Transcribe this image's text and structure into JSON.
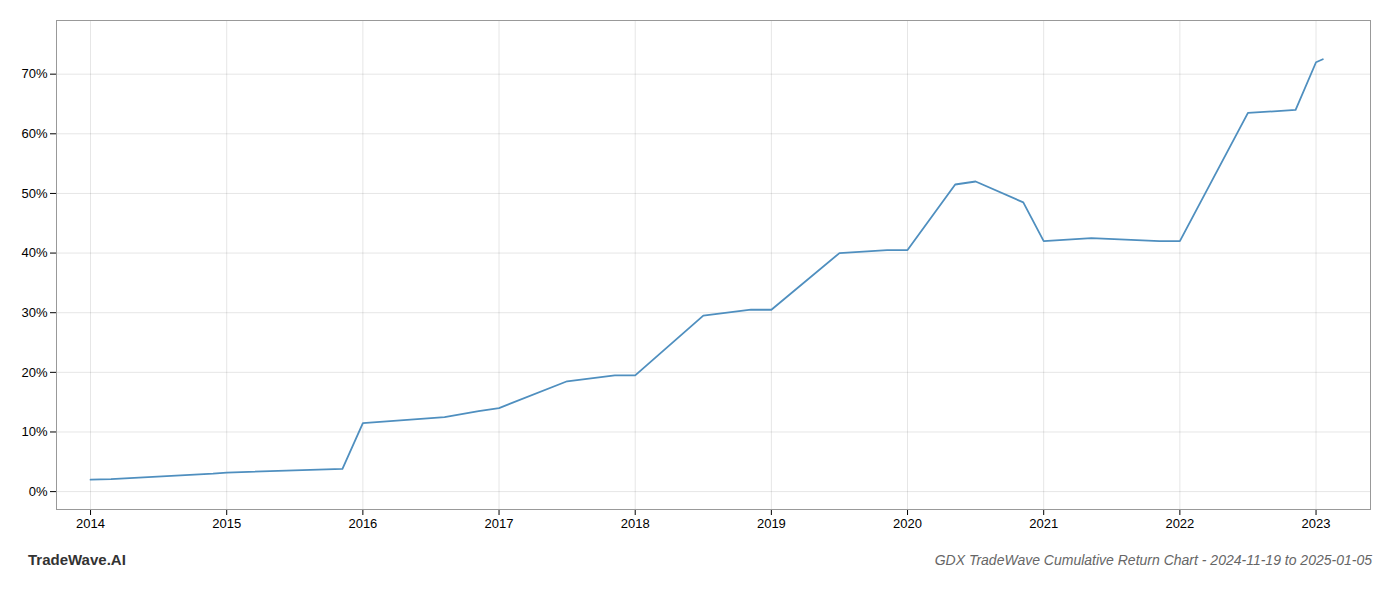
{
  "chart_data": {
    "type": "line",
    "title": "GDX TradeWave Cumulative Return Chart - 2024-11-19 to 2025-01-05",
    "annotations": [
      "TradeWave.AI"
    ],
    "x": [
      2014.0,
      2014.15,
      2014.9,
      2015.0,
      2015.85,
      2016.0,
      2016.6,
      2016.85,
      2017.0,
      2017.5,
      2017.85,
      2018.0,
      2018.5,
      2018.85,
      2019.0,
      2019.5,
      2019.85,
      2020.0,
      2020.35,
      2020.5,
      2020.85,
      2021.0,
      2021.35,
      2021.85,
      2022.0,
      2022.5,
      2022.85,
      2023.0,
      2023.05
    ],
    "values": [
      2.0,
      2.1,
      3.0,
      3.2,
      3.8,
      11.5,
      12.5,
      13.5,
      14.0,
      18.5,
      19.5,
      19.5,
      29.5,
      30.5,
      30.5,
      40.0,
      40.5,
      40.5,
      51.5,
      52.0,
      48.5,
      42.0,
      42.5,
      42.0,
      42.0,
      63.5,
      64.0,
      72.0,
      72.5
    ],
    "color": "#4f8fbf",
    "xlim": [
      2013.75,
      2023.4
    ],
    "ylim": [
      -3,
      79
    ],
    "xticks": [
      2014,
      2015,
      2016,
      2017,
      2018,
      2019,
      2020,
      2021,
      2022,
      2023
    ],
    "yticks": [
      {
        "value": 0,
        "label": "0%"
      },
      {
        "value": 10,
        "label": "10%"
      },
      {
        "value": 20,
        "label": "20%"
      },
      {
        "value": 30,
        "label": "30%"
      },
      {
        "value": 40,
        "label": "40%"
      },
      {
        "value": 50,
        "label": "50%"
      },
      {
        "value": 60,
        "label": "60%"
      },
      {
        "value": 70,
        "label": "70%"
      }
    ],
    "grid": true
  }
}
